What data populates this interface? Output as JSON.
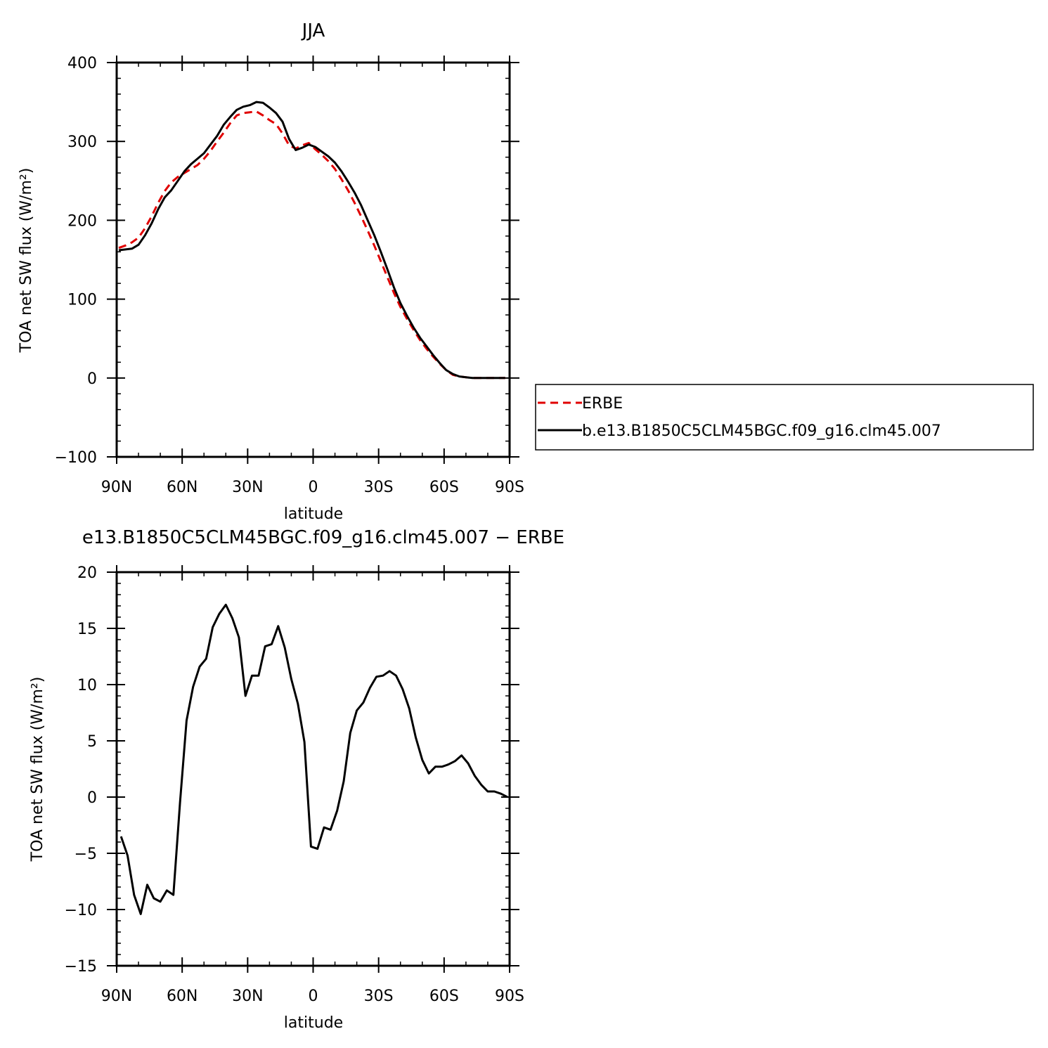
{
  "chart_data": [
    {
      "type": "line",
      "title": "JJA",
      "xlabel": "latitude",
      "ylabel": "TOA net SW flux (W/m²)",
      "xlim": [
        -90,
        90
      ],
      "ylim": [
        -100,
        400
      ],
      "x_ticks": [
        {
          "value": -90,
          "label": "90N"
        },
        {
          "value": -60,
          "label": "60N"
        },
        {
          "value": -30,
          "label": "30N"
        },
        {
          "value": 0,
          "label": "0"
        },
        {
          "value": 30,
          "label": "30S"
        },
        {
          "value": 60,
          "label": "60S"
        },
        {
          "value": 90,
          "label": "90S"
        }
      ],
      "y_ticks": [
        {
          "value": 400,
          "label": "400"
        },
        {
          "value": 300,
          "label": "300"
        },
        {
          "value": 200,
          "label": "200"
        },
        {
          "value": 100,
          "label": "100"
        },
        {
          "value": 0,
          "label": "0"
        },
        {
          "value": -100,
          "label": "−100"
        }
      ],
      "legend": {
        "placement": "right",
        "entries": [
          {
            "name": "ERBE",
            "color": "#e00000",
            "dash": "dashed"
          },
          {
            "name": "b.e13.B1850C5CLM45BGC.f09_g16.clm45.007",
            "color": "#000000",
            "dash": "solid"
          }
        ]
      },
      "series": [
        {
          "name": "ERBE",
          "color": "#e00000",
          "dashed": true,
          "x": [
            -89,
            -86,
            -83,
            -80,
            -77,
            -74,
            -71,
            -68,
            -65,
            -62,
            -59,
            -56,
            -53,
            -50,
            -47,
            -44,
            -41,
            -38,
            -35,
            -32,
            -29,
            -26,
            -23,
            -20,
            -17,
            -14,
            -11,
            -8,
            -5,
            -2,
            1,
            4,
            7,
            10,
            13,
            16,
            19,
            22,
            25,
            28,
            31,
            34,
            37,
            40,
            43,
            46,
            49,
            52,
            55,
            58,
            61,
            64,
            67,
            70,
            73,
            76,
            79,
            82,
            85,
            88
          ],
          "values": [
            165,
            168,
            172,
            178,
            190,
            205,
            222,
            237,
            248,
            255,
            260,
            265,
            270,
            278,
            288,
            300,
            311,
            323,
            333,
            336,
            337,
            338,
            333,
            327,
            322,
            310,
            295,
            291,
            295,
            298,
            290,
            283,
            275,
            265,
            252,
            238,
            222,
            205,
            187,
            168,
            148,
            128,
            108,
            90,
            75,
            61,
            48,
            37,
            27,
            18,
            10,
            4,
            2,
            1,
            0,
            0,
            0,
            0,
            0,
            0
          ]
        },
        {
          "name": "b.e13.B1850C5CLM45BGC.f09_g16.clm45.007",
          "color": "#000000",
          "dashed": false,
          "x": [
            -89,
            -86,
            -83,
            -80,
            -77,
            -74,
            -71,
            -68,
            -65,
            -62,
            -59,
            -56,
            -53,
            -50,
            -47,
            -44,
            -41,
            -38,
            -35,
            -32,
            -29,
            -26,
            -23,
            -20,
            -17,
            -14,
            -11,
            -8,
            -5,
            -2,
            1,
            4,
            7,
            10,
            13,
            16,
            19,
            22,
            25,
            28,
            31,
            34,
            37,
            40,
            43,
            46,
            49,
            52,
            55,
            58,
            61,
            64,
            67,
            70,
            73,
            76,
            79,
            82,
            85,
            88
          ],
          "values": [
            162,
            163,
            164,
            169,
            181,
            196,
            214,
            229,
            238,
            250,
            262,
            271,
            278,
            285,
            296,
            307,
            321,
            331,
            340,
            344,
            346,
            350,
            349,
            343,
            336,
            325,
            303,
            289,
            292,
            296,
            293,
            287,
            281,
            273,
            262,
            249,
            235,
            219,
            200,
            181,
            160,
            138,
            115,
            95,
            79,
            64,
            51,
            40,
            29,
            19,
            10,
            5,
            2,
            1,
            0,
            0,
            0,
            0,
            0,
            0
          ]
        }
      ]
    },
    {
      "type": "line",
      "title": "e13.B1850C5CLM45BGC.f09_g16.clm45.007 − ERBE",
      "xlabel": "latitude",
      "ylabel": "TOA net SW flux (W/m²)",
      "xlim": [
        -90,
        90
      ],
      "ylim": [
        -15,
        20
      ],
      "x_ticks": [
        {
          "value": -90,
          "label": "90N"
        },
        {
          "value": -60,
          "label": "60N"
        },
        {
          "value": -30,
          "label": "30N"
        },
        {
          "value": 0,
          "label": "0"
        },
        {
          "value": 30,
          "label": "30S"
        },
        {
          "value": 60,
          "label": "60S"
        },
        {
          "value": 90,
          "label": "90S"
        }
      ],
      "y_ticks": [
        {
          "value": 20,
          "label": "20"
        },
        {
          "value": 15,
          "label": "15"
        },
        {
          "value": 10,
          "label": "10"
        },
        {
          "value": 5,
          "label": "5"
        },
        {
          "value": 0,
          "label": "0"
        },
        {
          "value": -5,
          "label": "−5"
        },
        {
          "value": -10,
          "label": "−10"
        },
        {
          "value": -15,
          "label": "−15"
        }
      ],
      "series": [
        {
          "color": "#000000",
          "dashed": false,
          "x": [
            -88,
            -85,
            -82,
            -79,
            -76,
            -73,
            -70,
            -67,
            -64,
            -61,
            -58,
            -55,
            -52,
            -49,
            -46,
            -43,
            -40,
            -37,
            -34,
            -31,
            -28,
            -25,
            -22,
            -19,
            -16,
            -13,
            -10,
            -7,
            -4,
            -1,
            2,
            5,
            8,
            11,
            14,
            17,
            20,
            23,
            26,
            29,
            32,
            35,
            38,
            41,
            44,
            47,
            50,
            53,
            56,
            59,
            62,
            65,
            68,
            71,
            74,
            77,
            80,
            83,
            86,
            89
          ],
          "values": [
            -3.5,
            -5.2,
            -8.7,
            -10.4,
            -7.8,
            -9.0,
            -9.3,
            -8.3,
            -8.7,
            -0.5,
            6.8,
            9.8,
            11.6,
            12.3,
            15.1,
            16.3,
            17.1,
            15.9,
            14.2,
            9.0,
            10.8,
            10.8,
            13.4,
            13.6,
            15.2,
            13.3,
            10.5,
            8.3,
            4.9,
            -4.4,
            -4.6,
            -2.7,
            -2.9,
            -1.2,
            1.4,
            5.7,
            7.7,
            8.4,
            9.7,
            10.7,
            10.8,
            11.2,
            10.8,
            9.6,
            7.9,
            5.3,
            3.3,
            2.1,
            2.7,
            2.7,
            2.9,
            3.2,
            3.7,
            3.0,
            1.9,
            1.1,
            0.5,
            0.5,
            0.3,
            0.0
          ]
        }
      ]
    }
  ]
}
